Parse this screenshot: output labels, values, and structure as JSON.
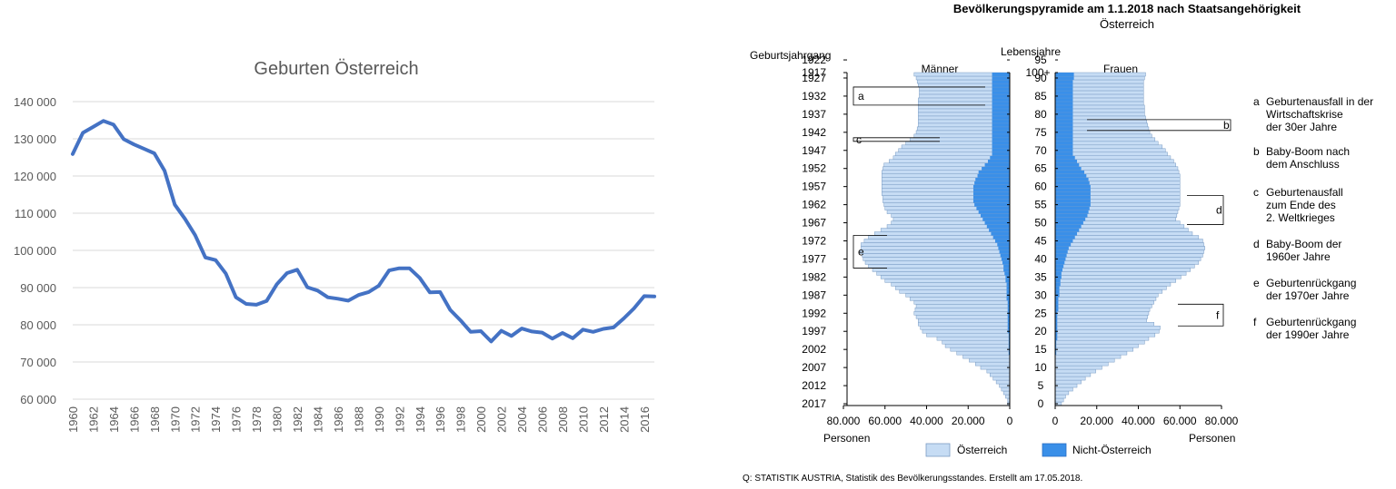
{
  "colors": {
    "line": "#4472C4",
    "grid": "#d9d9d9",
    "austrian": "#c6dcf4",
    "austrian_stroke": "#7a9cc4",
    "foreign": "#3a8fe8",
    "axis_text": "#595959"
  },
  "chart_data": [
    {
      "type": "line",
      "title": "Geburten Österreich",
      "xlabel": "",
      "ylabel": "",
      "ylim": [
        60000,
        140000
      ],
      "grid": true,
      "y_tick_labels": [
        "140 000",
        "130 000",
        "120 000",
        "110 000",
        "100 000",
        "90 000",
        "80 000",
        "70 000",
        "60 000"
      ],
      "x_tick_labels": [
        "1960",
        "1962",
        "1964",
        "1966",
        "1968",
        "1970",
        "1972",
        "1974",
        "1976",
        "1978",
        "1980",
        "1982",
        "1984",
        "1986",
        "1988",
        "1990",
        "1992",
        "1994",
        "1996",
        "1998",
        "2000",
        "2002",
        "2004",
        "2006",
        "2008",
        "2010",
        "2012",
        "2014",
        "2016"
      ],
      "x": [
        1960,
        1961,
        1962,
        1963,
        1964,
        1965,
        1966,
        1967,
        1968,
        1969,
        1970,
        1971,
        1972,
        1973,
        1974,
        1975,
        1976,
        1977,
        1978,
        1979,
        1980,
        1981,
        1982,
        1983,
        1984,
        1985,
        1986,
        1987,
        1988,
        1989,
        1990,
        1991,
        1992,
        1993,
        1994,
        1995,
        1996,
        1997,
        1998,
        1999,
        2000,
        2001,
        2002,
        2003,
        2004,
        2005,
        2006,
        2007,
        2008,
        2009,
        2010,
        2011,
        2012,
        2013,
        2014,
        2015,
        2016,
        2017
      ],
      "values": [
        125900,
        131600,
        133200,
        134800,
        133800,
        129900,
        128500,
        127300,
        126100,
        121400,
        112300,
        108500,
        104100,
        98100,
        97400,
        93800,
        87400,
        85600,
        85400,
        86400,
        90900,
        93900,
        94800,
        90100,
        89200,
        87400,
        87000,
        86500,
        88000,
        88800,
        90500,
        94600,
        95200,
        95200,
        92600,
        88700,
        88800,
        84000,
        81200,
        78100,
        78300,
        75500,
        78400,
        77000,
        79000,
        78200,
        77900,
        76300,
        77800,
        76400,
        78700,
        78100,
        78900,
        79300,
        81700,
        84400,
        87700,
        87600
      ]
    },
    {
      "type": "bar",
      "title": "Bevölkerungspyramide am 1.1.2018 nach Staatsangehörigkeit",
      "subtitle": "Österreich",
      "left_axis_title": "Geburtsjahrgang",
      "center_axis_title": "Lebensjahre",
      "male_label": "Männer",
      "female_label": "Frauen",
      "x_unit_label": "Personen",
      "xlim": [
        0,
        80000
      ],
      "male_x_tick_labels": [
        "80.000",
        "60.000",
        "40.000",
        "20.000",
        "0"
      ],
      "female_x_tick_labels": [
        "0",
        "20.000",
        "40.000",
        "60.000",
        "80.000"
      ],
      "birth_year_labels": [
        "1917",
        "1922",
        "1927",
        "1932",
        "1937",
        "1942",
        "1947",
        "1952",
        "1957",
        "1962",
        "1967",
        "1972",
        "1977",
        "1982",
        "1987",
        "1992",
        "1997",
        "2002",
        "2007",
        "2012",
        "2017"
      ],
      "age_labels": [
        "100+",
        "95",
        "90",
        "85",
        "80",
        "75",
        "70",
        "65",
        "60",
        "55",
        "50",
        "45",
        "40",
        "35",
        "30",
        "25",
        "20",
        "15",
        "10",
        "5",
        "0"
      ],
      "legend": [
        "Österreich",
        "Nicht-Österreich"
      ],
      "annotations": [
        {
          "letter": "a",
          "text": "Geburtenausfall in der Wirtschaftskrise der 30er Jahre"
        },
        {
          "letter": "b",
          "text": "Baby-Boom nach dem Anschluss"
        },
        {
          "letter": "c",
          "text": "Geburtenausfall zum Ende des 2. Weltkrieges"
        },
        {
          "letter": "d",
          "text": "Baby-Boom der 1960er Jahre"
        },
        {
          "letter": "e",
          "text": "Geburtenrückgang der 1970er Jahre"
        },
        {
          "letter": "f",
          "text": "Geburtenrückgang der 1990er Jahre"
        }
      ],
      "series": [
        {
          "name": "Österreich",
          "male": [
            1000,
            1000,
            2000,
            3000,
            4000,
            5000,
            6500,
            8000,
            9500,
            11000,
            14000,
            16500,
            19500,
            22500,
            25500,
            28500,
            31000,
            32500,
            35000,
            40000,
            42000,
            43000,
            44000,
            44000,
            45000,
            46000,
            45500,
            45000,
            46000,
            48000,
            50000,
            53000,
            55000,
            57000,
            60000,
            62000,
            64000,
            66000,
            68000,
            69500,
            70500,
            71000,
            72000,
            71500,
            71500,
            70000,
            68000,
            65000,
            62000,
            59000,
            57000,
            56000,
            57000,
            59000,
            60000,
            60500,
            61000,
            61000,
            61500,
            61500,
            61500,
            61500,
            61500,
            61500,
            61500,
            61000,
            60500,
            58000,
            56000,
            55000,
            53500,
            52000,
            50000,
            48000,
            46000,
            45000,
            44500,
            44000,
            44000,
            44000,
            44000,
            44000,
            44000,
            44000,
            44000,
            43500,
            43500,
            43500,
            44000,
            44500,
            45000,
            46000
          ],
          "female": [
            3000,
            4000,
            5000,
            6500,
            8500,
            10500,
            12500,
            14500,
            17000,
            19500,
            22500,
            25500,
            28500,
            31500,
            34500,
            37500,
            40000,
            43000,
            45000,
            48000,
            50000,
            50500,
            47500,
            44000,
            44500,
            45000,
            45500,
            46500,
            47500,
            48500,
            49500,
            51500,
            53500,
            55500,
            58000,
            60500,
            63000,
            65000,
            67000,
            69000,
            70000,
            71000,
            71500,
            72000,
            71500,
            71000,
            69000,
            66000,
            64000,
            62000,
            60000,
            58000,
            58500,
            59000,
            59500,
            60000,
            60000,
            60000,
            60000,
            60000,
            60000,
            60000,
            60000,
            60000,
            59500,
            59000,
            58000,
            57000,
            55500,
            54000,
            53000,
            51500,
            49500,
            48000,
            46500,
            45500,
            45000,
            44500,
            44000,
            43500,
            43000,
            43000,
            43000,
            42500,
            42500,
            42500,
            42500,
            42500,
            42500,
            42500,
            43000,
            43500
          ]
        },
        {
          "name": "Nicht-Österreich",
          "male": [
            0,
            0,
            0,
            0,
            0,
            0,
            0,
            0,
            0,
            0,
            0,
            0,
            0,
            0,
            500,
            500,
            500,
            500,
            500,
            500,
            1000,
            1000,
            1000,
            1000,
            1000,
            1000,
            1000,
            1000,
            1000,
            1500,
            1500,
            1500,
            1500,
            1500,
            2000,
            2000,
            2500,
            3000,
            3000,
            3500,
            4000,
            4500,
            5000,
            5500,
            6000,
            7000,
            8000,
            9000,
            10000,
            11000,
            12000,
            13000,
            14000,
            15000,
            16000,
            17000,
            17500,
            17500,
            17500,
            17500,
            17500,
            17000,
            16500,
            15500,
            15000,
            13500,
            12000,
            10500,
            9500,
            8500,
            8500,
            8500,
            8500,
            8500,
            8500,
            8500,
            8500,
            8500,
            8500,
            8500,
            8500,
            8500,
            8500,
            8500,
            8500,
            8500,
            8500,
            8500,
            8500,
            8500,
            8500,
            8500
          ],
          "female": [
            0,
            0,
            0,
            0,
            0,
            0,
            0,
            0,
            0,
            0,
            0,
            0,
            0,
            0,
            500,
            500,
            500,
            500,
            1000,
            1000,
            1000,
            1000,
            1000,
            1000,
            1000,
            1000,
            1500,
            1500,
            1500,
            1500,
            2000,
            2000,
            2000,
            2500,
            2500,
            3000,
            3000,
            3500,
            4000,
            4500,
            5000,
            5500,
            6000,
            6500,
            7500,
            8500,
            9500,
            10500,
            11500,
            12500,
            13500,
            14500,
            15500,
            16000,
            16500,
            17000,
            17000,
            17000,
            17000,
            17000,
            17000,
            16500,
            16000,
            15000,
            14000,
            12500,
            11500,
            10500,
            9500,
            8500,
            8500,
            8500,
            8500,
            8500,
            8500,
            8500,
            8500,
            8500,
            8500,
            8500,
            8500,
            8500,
            8500,
            8500,
            8500,
            8500,
            8500,
            8500,
            8500,
            8500,
            9000,
            9000
          ]
        }
      ]
    }
  ],
  "source": "Q: STATISTIK AUSTRIA, Statistik des Bevölkerungsstandes. Erstellt am 17.05.2018."
}
